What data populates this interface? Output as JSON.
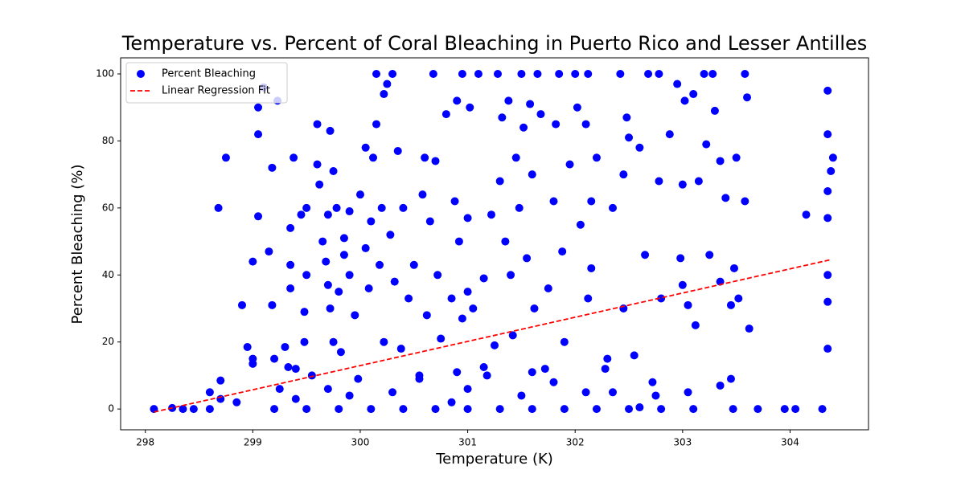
{
  "chart_data": {
    "type": "scatter",
    "title": "Temperature vs. Percent of Coral Bleaching in Puerto Rico and Lesser Antilles",
    "xlabel": "Temperature (K)",
    "ylabel": "Percent Bleaching (%)",
    "xlim": [
      297.77,
      304.73
    ],
    "ylim": [
      -6.2,
      104.8
    ],
    "xticks": [
      298,
      299,
      300,
      301,
      302,
      303,
      304
    ],
    "yticks": [
      0,
      20,
      40,
      60,
      80,
      100
    ],
    "legend": "upper left",
    "grid": false,
    "series": [
      {
        "name": "Percent Bleaching",
        "type": "scatter",
        "color": "#0000ff",
        "x": [
          298.08,
          298.25,
          298.35,
          298.45,
          298.6,
          298.6,
          298.7,
          298.7,
          298.68,
          298.75,
          298.85,
          298.9,
          298.95,
          299.0,
          299.0,
          299.0,
          299.05,
          299.05,
          299.05,
          299.1,
          299.15,
          299.18,
          299.18,
          299.2,
          299.23,
          299.25,
          299.3,
          299.33,
          299.35,
          299.35,
          299.35,
          299.38,
          299.4,
          299.45,
          299.48,
          299.48,
          299.5,
          299.5,
          299.55,
          299.6,
          299.6,
          299.62,
          299.65,
          299.68,
          299.7,
          299.7,
          299.72,
          299.72,
          299.75,
          299.75,
          299.78,
          299.8,
          299.82,
          299.85,
          299.85,
          299.9,
          299.9,
          299.95,
          299.98,
          300.0,
          300.05,
          300.05,
          300.08,
          300.1,
          300.12,
          300.15,
          300.15,
          300.18,
          300.2,
          300.22,
          300.22,
          300.25,
          300.28,
          300.3,
          300.32,
          300.35,
          300.38,
          300.4,
          300.45,
          300.5,
          300.55,
          300.58,
          300.6,
          300.62,
          300.65,
          300.68,
          300.7,
          300.72,
          300.75,
          300.8,
          300.85,
          300.88,
          300.9,
          300.92,
          300.95,
          300.95,
          301.0,
          301.0,
          301.02,
          301.05,
          301.1,
          301.15,
          301.18,
          301.22,
          301.25,
          301.28,
          301.3,
          301.32,
          301.35,
          301.38,
          301.4,
          301.42,
          301.45,
          301.48,
          301.5,
          301.52,
          301.55,
          301.58,
          301.6,
          301.62,
          301.65,
          301.68,
          301.72,
          301.75,
          301.8,
          301.82,
          301.85,
          301.88,
          301.9,
          301.95,
          302.0,
          302.02,
          302.05,
          302.1,
          302.12,
          302.12,
          302.15,
          302.15,
          302.2,
          302.3,
          302.35,
          302.42,
          302.45,
          302.45,
          302.48,
          302.5,
          302.55,
          302.6,
          302.65,
          302.68,
          302.72,
          302.78,
          302.78,
          302.8,
          302.88,
          302.95,
          302.98,
          303.0,
          303.0,
          303.02,
          303.05,
          303.1,
          303.12,
          303.15,
          303.2,
          303.22,
          303.25,
          303.28,
          303.3,
          303.35,
          303.35,
          303.4,
          303.45,
          303.48,
          303.5,
          303.52,
          303.58,
          303.6,
          303.62,
          303.58,
          304.15,
          304.35,
          304.35,
          304.35,
          304.35,
          304.35,
          304.35,
          304.35,
          304.4,
          304.38,
          299.2,
          299.5,
          299.8,
          300.1,
          300.4,
          300.7,
          301.0,
          301.3,
          301.6,
          301.9,
          302.2,
          302.5,
          302.8,
          303.1,
          303.47,
          303.7,
          303.95,
          304.05,
          304.3,
          299.4,
          299.9,
          300.3,
          300.55,
          301.0,
          301.5,
          301.8,
          302.1,
          302.35,
          302.75,
          303.35,
          303.45,
          300.9,
          301.15,
          299.7,
          300.85,
          301.6,
          302.28,
          302.6,
          303.05
        ],
        "y": [
          0,
          0.3,
          0,
          0,
          0,
          5,
          8.5,
          3,
          60,
          75,
          2,
          31,
          18.5,
          44,
          15,
          13.5,
          57.5,
          90,
          82,
          96,
          47,
          72,
          31,
          15,
          92,
          6,
          18.5,
          12.5,
          54,
          43,
          36,
          75,
          12,
          58,
          20,
          29,
          60,
          40,
          10,
          85,
          73,
          67,
          50,
          44,
          58,
          37,
          83,
          30,
          71,
          20,
          60,
          35,
          17,
          51,
          46,
          59,
          40,
          28,
          9,
          64,
          78,
          48,
          36,
          56,
          75,
          100,
          85,
          43,
          60,
          94,
          20,
          97,
          52,
          100,
          38,
          77,
          18,
          60,
          33,
          43,
          9,
          64,
          75,
          28,
          56,
          100,
          74,
          40,
          21,
          88,
          33,
          62,
          92,
          50,
          27,
          100,
          35,
          57,
          90,
          30,
          100,
          39,
          10,
          58,
          19,
          100,
          68,
          87,
          50,
          92,
          40,
          22,
          75,
          60,
          100,
          84,
          45,
          91,
          70,
          30,
          100,
          88,
          12,
          36,
          62,
          85,
          100,
          47,
          20,
          73,
          100,
          90,
          55,
          85,
          100,
          33,
          62,
          42,
          75,
          15,
          60,
          100,
          70,
          30,
          87,
          81,
          16,
          78,
          46,
          100,
          8,
          100,
          68,
          33,
          82,
          97,
          45,
          67,
          37,
          92,
          31,
          94,
          25,
          68,
          100,
          79,
          46,
          100,
          89,
          74,
          38,
          63,
          31,
          42,
          75,
          33,
          100,
          93,
          24,
          62,
          58,
          95,
          82,
          65,
          57,
          40,
          32,
          18,
          75,
          71,
          0,
          0,
          0,
          0,
          0,
          0,
          0,
          0,
          0,
          0,
          0,
          0,
          0,
          0,
          0,
          0,
          0,
          0,
          0,
          3,
          4,
          5,
          10,
          6,
          4,
          8,
          5,
          5,
          4,
          7,
          9,
          11,
          12.5,
          6,
          2,
          11,
          12,
          0.5,
          5
        ]
      },
      {
        "name": "Linear Regression Fit",
        "type": "line",
        "color": "#ff0000",
        "x": [
          298.08,
          304.37
        ],
        "y": [
          -0.9,
          44.5
        ]
      }
    ]
  }
}
